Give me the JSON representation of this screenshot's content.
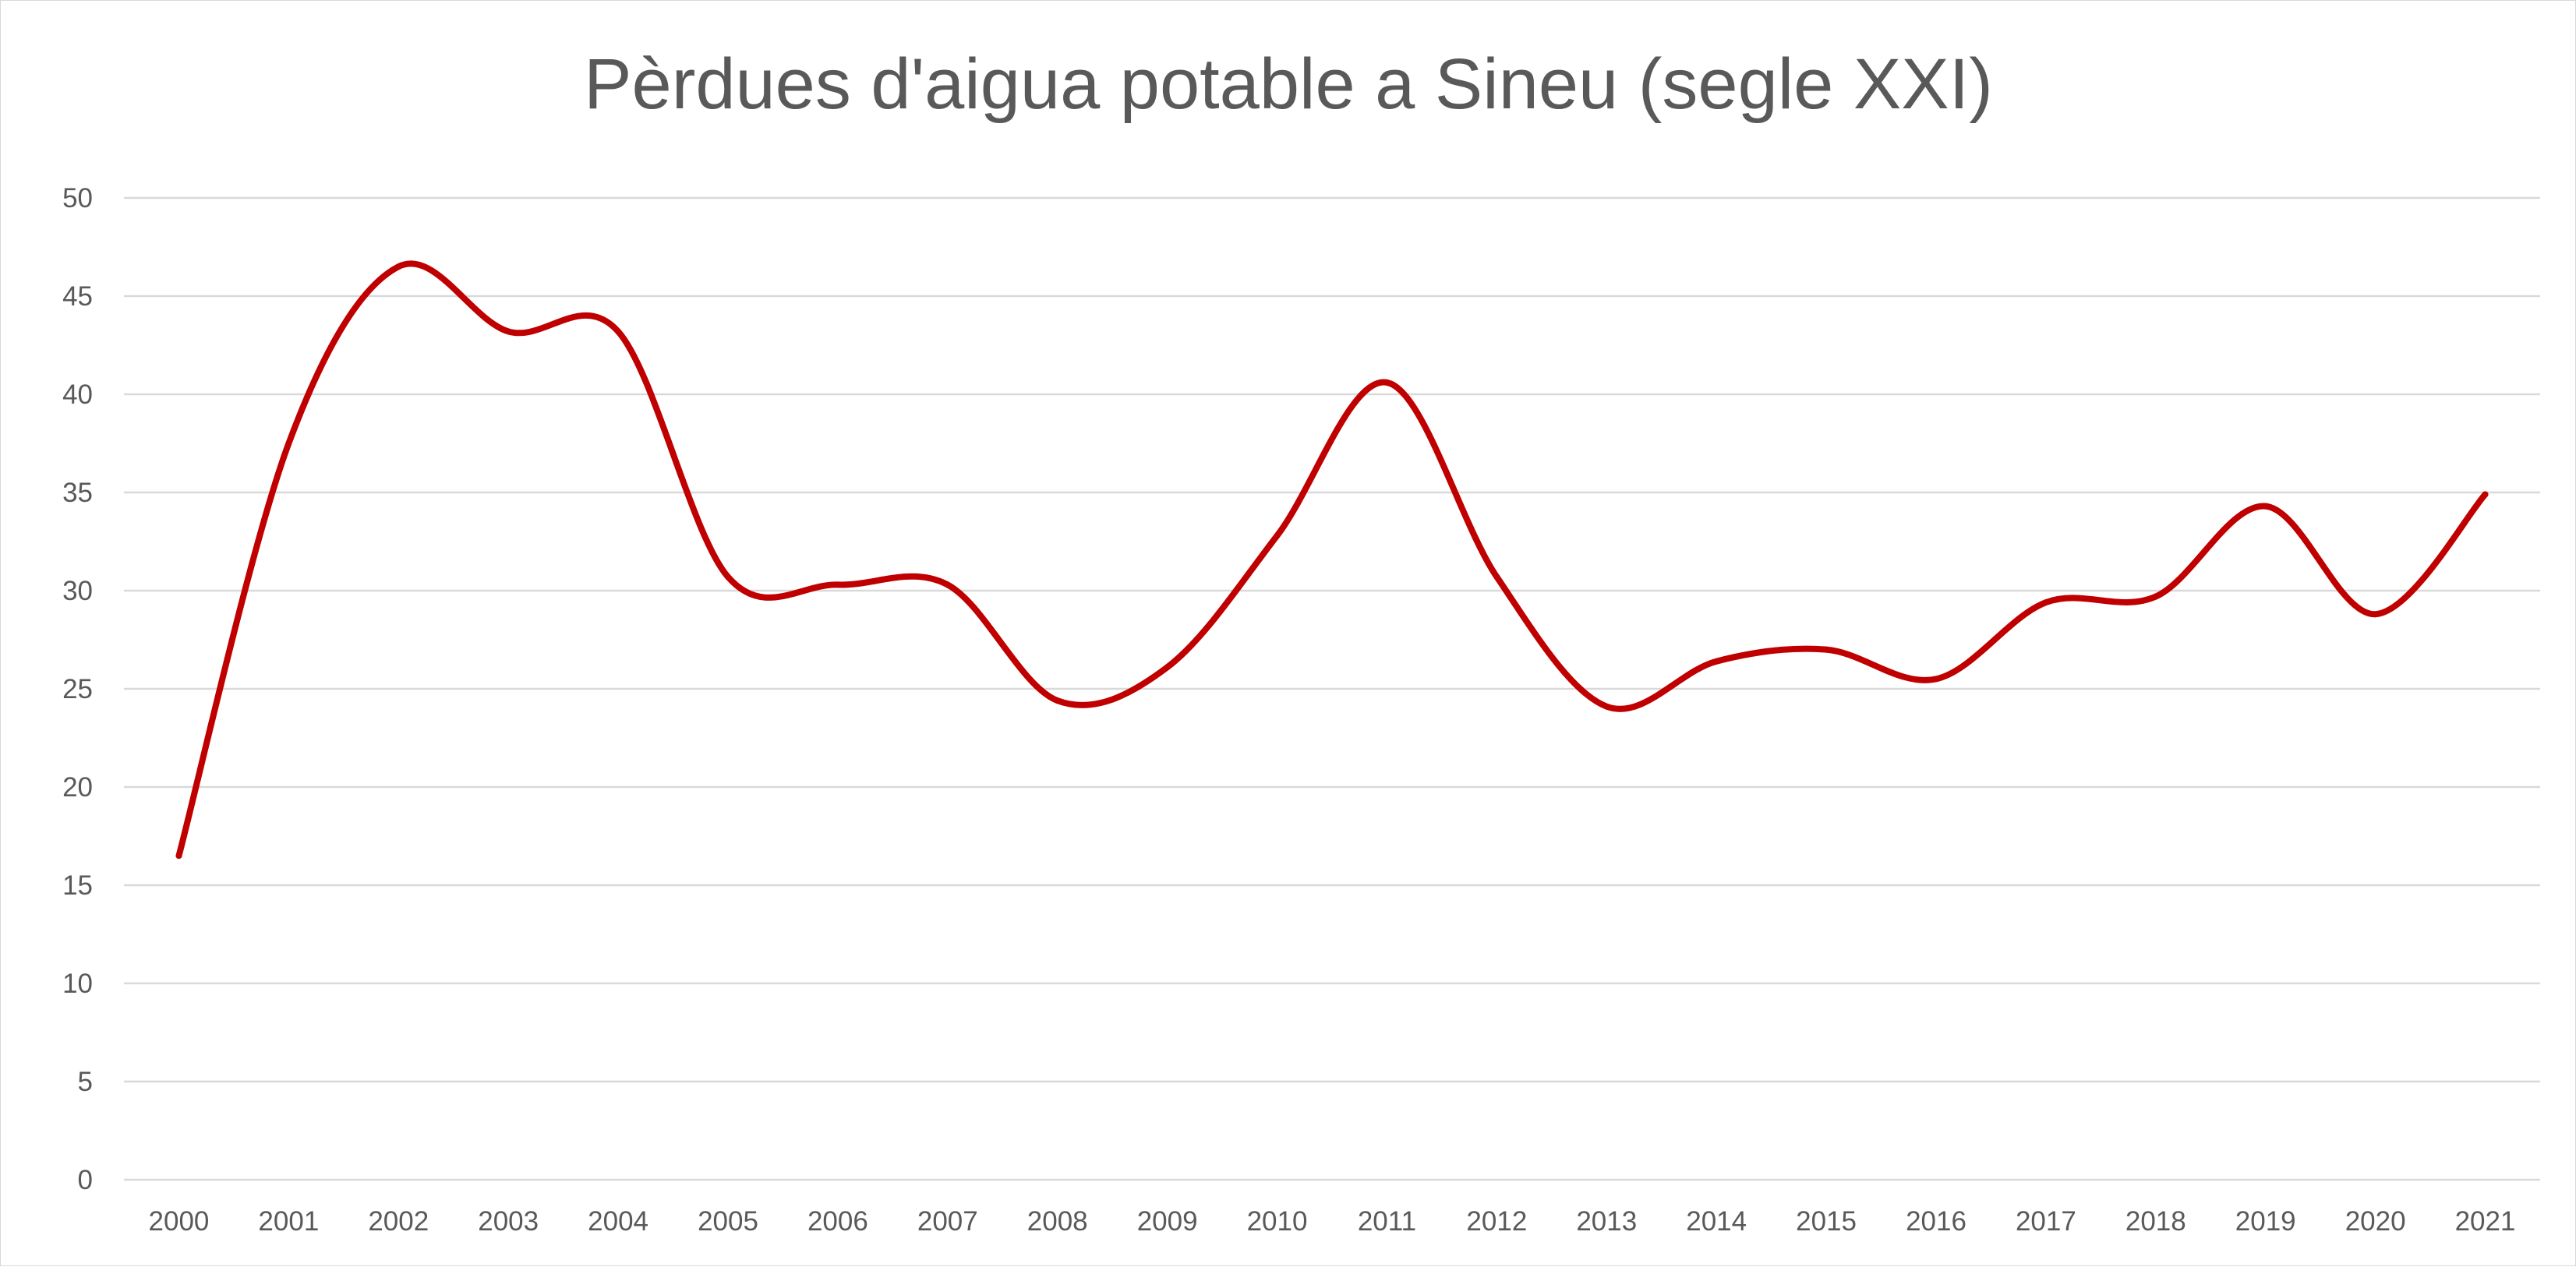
{
  "chart_data": {
    "type": "line",
    "title": "Pèrdues d'aigua potable a Sineu (segle XXI)",
    "xlabel": "",
    "ylabel": "",
    "categories": [
      "2000",
      "2001",
      "2002",
      "2003",
      "2004",
      "2005",
      "2006",
      "2007",
      "2008",
      "2009",
      "2010",
      "2011",
      "2012",
      "2013",
      "2014",
      "2015",
      "2016",
      "2017",
      "2018",
      "2019",
      "2020",
      "2021"
    ],
    "series": [
      {
        "values": [
          16.5,
          37.5,
          46.5,
          43.2,
          43.2,
          30.7,
          30.3,
          30.3,
          24.4,
          26.1,
          32.8,
          40.6,
          30.7,
          24.1,
          26.4,
          27.0,
          25.5,
          29.4,
          29.7,
          34.3,
          28.8,
          34.9
        ],
        "color": "#c00000",
        "smooth": true
      }
    ],
    "ylim": [
      0,
      50
    ],
    "y_ticks": [
      0,
      5,
      10,
      15,
      20,
      25,
      30,
      35,
      40,
      45,
      50
    ],
    "grid": true,
    "legend": "none"
  }
}
